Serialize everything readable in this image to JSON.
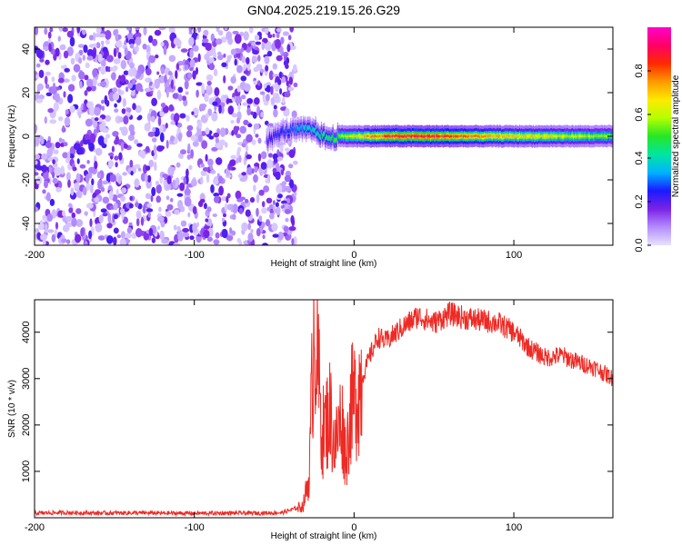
{
  "title": "GN04.2025.219.15.26.G29",
  "chart_data": [
    {
      "type": "heatmap",
      "xlabel": "Height of straight line (km)",
      "ylabel": "Frequency (Hz)",
      "xlim": [
        -200,
        162
      ],
      "ylim": [
        -50,
        50
      ],
      "xticks": [
        -200,
        -100,
        0,
        100
      ],
      "yticks": [
        -40,
        -20,
        0,
        20,
        40
      ],
      "colorbar": {
        "label": "Normalized spectral amplitude",
        "range": [
          0,
          1
        ],
        "ticks": [
          "0.0",
          "0.2",
          "0.4",
          "0.6",
          "0.8"
        ],
        "colormap": [
          "#e8e2ff",
          "#b38cff",
          "#7a22e6",
          "#1a1aff",
          "#00b3ff",
          "#00e6a0",
          "#26e626",
          "#b3ff00",
          "#ffea00",
          "#ff9a00",
          "#ff2a00",
          "#ff0066",
          "#ff00cc"
        ]
      },
      "noise_region_x": [
        -200,
        -40
      ],
      "signal_track": {
        "x": [
          -55,
          -45,
          -35,
          -25,
          -20,
          -15,
          -10,
          0,
          20,
          40,
          60,
          80,
          100,
          120,
          140,
          162
        ],
        "y": [
          -2,
          2,
          3,
          3,
          0,
          -1,
          0,
          0,
          0,
          0,
          0,
          0,
          0,
          0,
          0,
          0
        ],
        "peak_amplitude": [
          0.25,
          0.3,
          0.4,
          0.45,
          0.5,
          0.55,
          0.6,
          0.7,
          0.9,
          0.95,
          0.9,
          0.8,
          0.75,
          0.7,
          0.65,
          0.6
        ]
      }
    },
    {
      "type": "line",
      "xlabel": "Height of straight line (km)",
      "ylabel": "SNR (10 * v/v)",
      "xlim": [
        -200,
        162
      ],
      "ylim": [
        0,
        4700
      ],
      "xticks": [
        -200,
        -100,
        0,
        100
      ],
      "yticks": [
        1000,
        2000,
        3000,
        4000
      ],
      "color": "#ee2a24",
      "series": [
        {
          "x": [
            -200,
            -180,
            -160,
            -140,
            -120,
            -100,
            -80,
            -60,
            -45,
            -32,
            -28,
            -25,
            -20,
            -15,
            -12,
            -8,
            -5,
            -2,
            0,
            5,
            10,
            15,
            20,
            30,
            40,
            50,
            60,
            70,
            80,
            90,
            100,
            110,
            120,
            130,
            140,
            150,
            162
          ],
          "y": [
            100,
            110,
            100,
            105,
            100,
            95,
            100,
            100,
            110,
            250,
            900,
            4450,
            1800,
            2300,
            1500,
            2200,
            1300,
            2400,
            2500,
            3000,
            3500,
            3900,
            3800,
            4100,
            4350,
            4200,
            4400,
            4300,
            4250,
            4200,
            4000,
            3650,
            3450,
            3500,
            3350,
            3250,
            3000
          ]
        }
      ]
    }
  ]
}
